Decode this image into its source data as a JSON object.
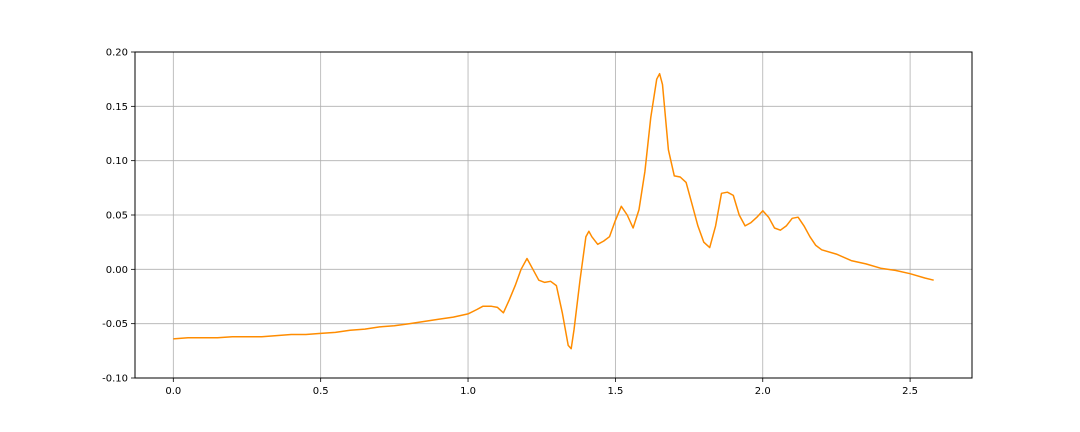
{
  "chart_data": {
    "type": "line",
    "title": "",
    "xlabel": "",
    "ylabel": "",
    "xlim": [
      -0.13,
      2.71
    ],
    "ylim": [
      -0.1,
      0.2
    ],
    "grid": true,
    "x_ticks": [
      "0.0",
      "0.5",
      "1.0",
      "1.5",
      "2.0",
      "2.5"
    ],
    "y_ticks": [
      "-0.10",
      "-0.05",
      "0.00",
      "0.05",
      "0.10",
      "0.15",
      "0.20"
    ],
    "line_color": "#ff8c00",
    "series": [
      {
        "x": [
          0.0,
          0.05,
          0.1,
          0.15,
          0.2,
          0.25,
          0.3,
          0.35,
          0.4,
          0.45,
          0.5,
          0.55,
          0.6,
          0.65,
          0.7,
          0.75,
          0.8,
          0.85,
          0.9,
          0.95,
          1.0,
          1.03,
          1.05,
          1.08,
          1.1,
          1.12,
          1.14,
          1.16,
          1.18,
          1.2,
          1.22,
          1.24,
          1.26,
          1.28,
          1.3,
          1.32,
          1.34,
          1.35,
          1.36,
          1.38,
          1.4,
          1.41,
          1.42,
          1.44,
          1.46,
          1.48,
          1.5,
          1.52,
          1.54,
          1.56,
          1.58,
          1.6,
          1.62,
          1.64,
          1.65,
          1.66,
          1.68,
          1.7,
          1.72,
          1.74,
          1.76,
          1.78,
          1.8,
          1.82,
          1.84,
          1.86,
          1.88,
          1.9,
          1.92,
          1.94,
          1.96,
          1.98,
          2.0,
          2.02,
          2.04,
          2.06,
          2.08,
          2.1,
          2.12,
          2.14,
          2.16,
          2.18,
          2.2,
          2.25,
          2.3,
          2.35,
          2.4,
          2.45,
          2.5,
          2.55,
          2.58
        ],
        "y": [
          -0.064,
          -0.063,
          -0.063,
          -0.063,
          -0.062,
          -0.062,
          -0.062,
          -0.061,
          -0.06,
          -0.06,
          -0.059,
          -0.058,
          -0.056,
          -0.055,
          -0.053,
          -0.052,
          -0.05,
          -0.048,
          -0.046,
          -0.044,
          -0.041,
          -0.037,
          -0.034,
          -0.034,
          -0.035,
          -0.04,
          -0.028,
          -0.015,
          0.0,
          0.01,
          0.0,
          -0.01,
          -0.012,
          -0.011,
          -0.015,
          -0.04,
          -0.07,
          -0.073,
          -0.055,
          -0.01,
          0.03,
          0.035,
          0.03,
          0.023,
          0.026,
          0.03,
          0.045,
          0.058,
          0.05,
          0.038,
          0.055,
          0.09,
          0.14,
          0.175,
          0.18,
          0.17,
          0.11,
          0.086,
          0.085,
          0.08,
          0.06,
          0.04,
          0.025,
          0.02,
          0.04,
          0.07,
          0.071,
          0.068,
          0.05,
          0.04,
          0.043,
          0.048,
          0.054,
          0.048,
          0.038,
          0.036,
          0.04,
          0.047,
          0.048,
          0.04,
          0.03,
          0.022,
          0.018,
          0.014,
          0.008,
          0.005,
          0.001,
          -0.001,
          -0.004,
          -0.008,
          -0.01
        ]
      }
    ]
  }
}
